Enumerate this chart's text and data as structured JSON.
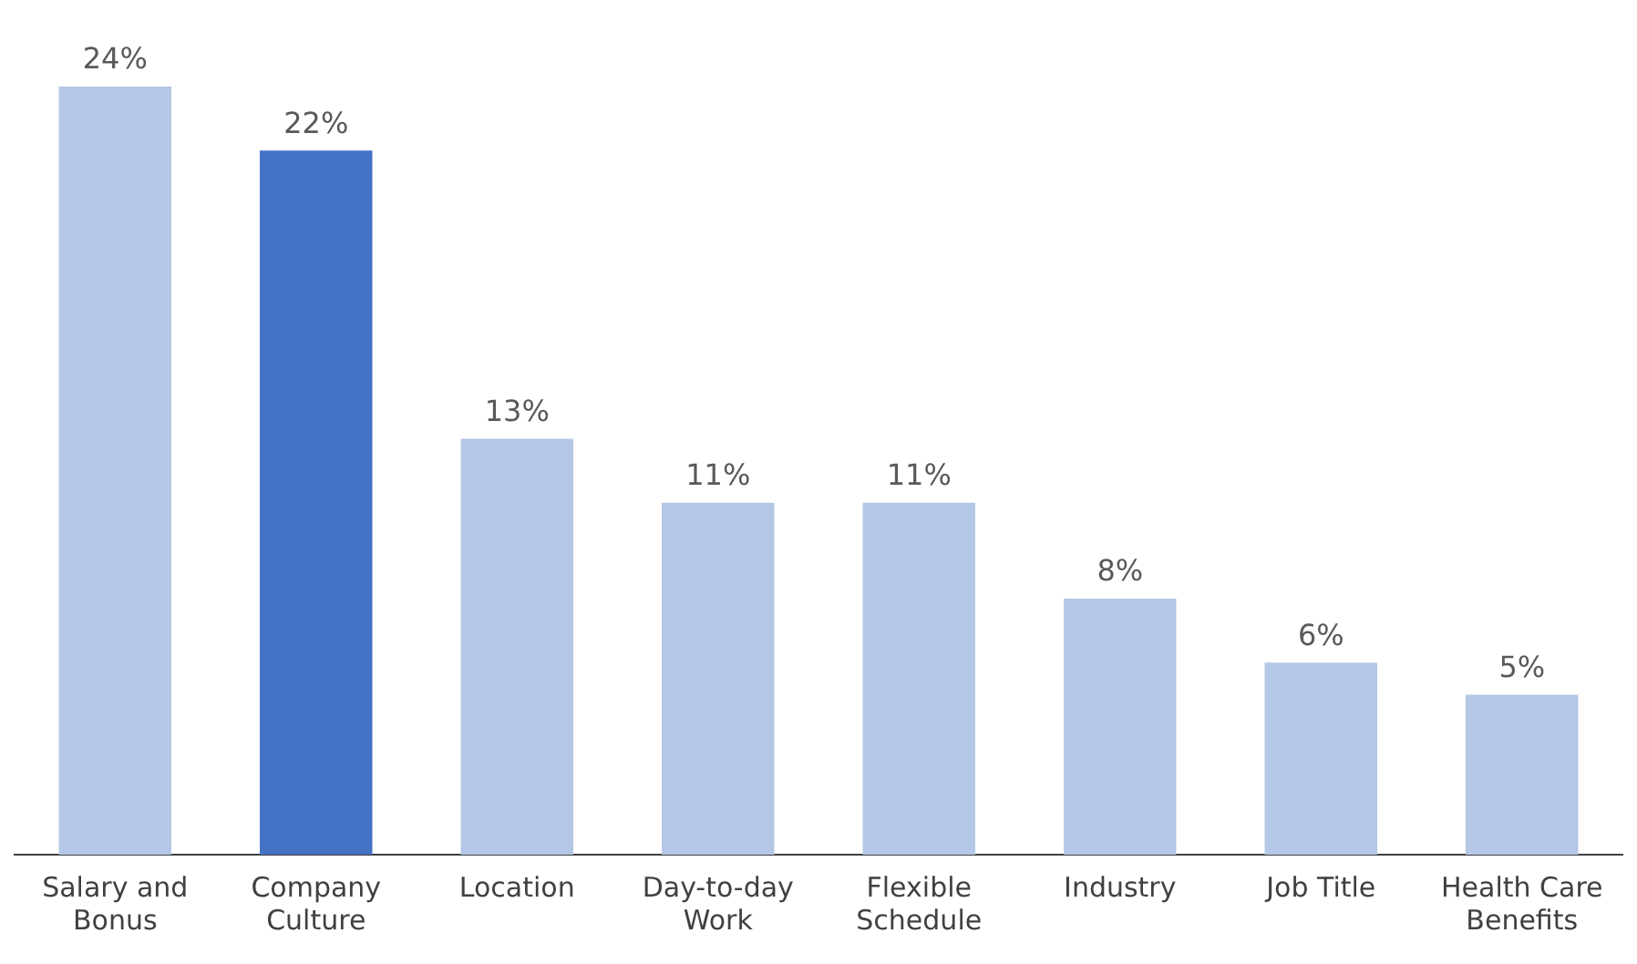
{
  "chart_data": {
    "type": "bar",
    "categories": [
      "Salary and Bonus",
      "Company Culture",
      "Location",
      "Day-to-day Work",
      "Flexible Schedule",
      "Industry",
      "Job Title",
      "Health Care Benefits"
    ],
    "values": [
      24,
      22,
      13,
      11,
      11,
      8,
      6,
      5
    ],
    "colors": [
      "#b4c7e7",
      "#4472c4",
      "#b4c7e7",
      "#b4c7e7",
      "#b4c7e7",
      "#b4c7e7",
      "#b4c7e7",
      "#b4c7e7"
    ],
    "data_labels": true,
    "value_labels": [
      "24%",
      "22%",
      "13%",
      "11%",
      "11%",
      "8%",
      "6%",
      "5%"
    ],
    "grid": false,
    "legend": false
  }
}
